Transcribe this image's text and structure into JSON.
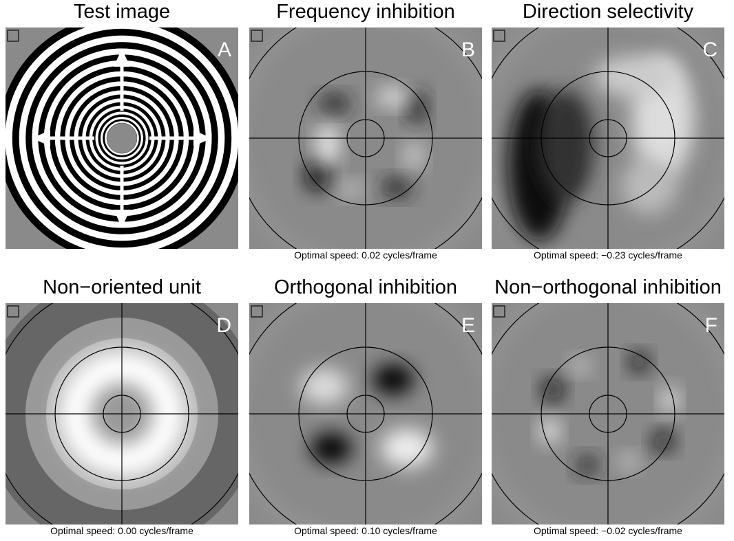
{
  "panels": [
    {
      "title": "Test image",
      "letter": "A"
    },
    {
      "title": "Frequency inhibition",
      "letter": "B",
      "caption": "Optimal speed: 0.02 cycles/frame"
    },
    {
      "title": "Direction selectivity",
      "letter": "C",
      "caption": "Optimal speed: −0.23 cycles/frame"
    },
    {
      "title": "Non−oriented unit",
      "letter": "D",
      "caption": "Optimal speed: 0.00 cycles/frame"
    },
    {
      "title": "Orthogonal inhibition",
      "letter": "E",
      "caption": "Optimal speed: 0.10 cycles/frame"
    },
    {
      "title": "Non−orthogonal inhibition",
      "letter": "F",
      "caption": "Optimal speed: −0.02 cycles/frame"
    }
  ]
}
